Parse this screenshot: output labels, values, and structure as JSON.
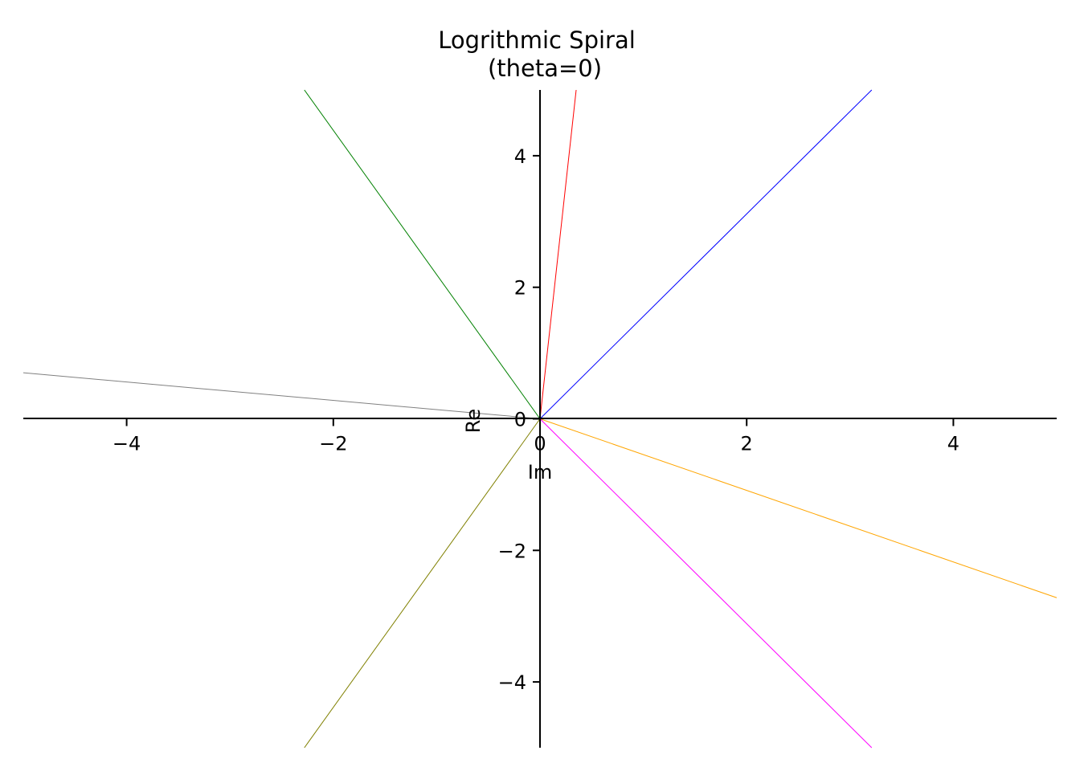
{
  "chart_data": {
    "type": "line",
    "title": "Logrithmic Spiral",
    "subtitle": "(theta=0)",
    "xlabel": "Im",
    "ylabel": "Re",
    "xlim": [
      -5,
      5
    ],
    "ylim": [
      -5,
      5
    ],
    "xticks": [
      -4,
      -2,
      0,
      2,
      4
    ],
    "yticks": [
      -4,
      -2,
      0,
      2,
      4
    ],
    "xtick_labels": [
      "−4",
      "−2",
      "0",
      "2",
      "4"
    ],
    "ytick_labels": [
      "−4",
      "−2",
      "0",
      "2",
      "4"
    ],
    "grid": false,
    "legend": "none",
    "spines": "centered at origin",
    "series": [
      {
        "color": "#ff0000",
        "x": [
          0,
          0.35
        ],
        "y": [
          0,
          5
        ]
      },
      {
        "color": "#0000ff",
        "x": [
          0,
          3.21
        ],
        "y": [
          0,
          5
        ]
      },
      {
        "color": "#ffa500",
        "x": [
          0,
          5
        ],
        "y": [
          0,
          -2.72
        ]
      },
      {
        "color": "#ff00ff",
        "x": [
          0,
          3.21
        ],
        "y": [
          0,
          -5
        ]
      },
      {
        "color": "#808000",
        "x": [
          0,
          -2.28
        ],
        "y": [
          0,
          -5
        ]
      },
      {
        "color": "#808080",
        "x": [
          0,
          -5
        ],
        "y": [
          0,
          0.7
        ]
      },
      {
        "color": "#008000",
        "x": [
          0,
          -2.28
        ],
        "y": [
          0,
          5
        ]
      }
    ]
  }
}
